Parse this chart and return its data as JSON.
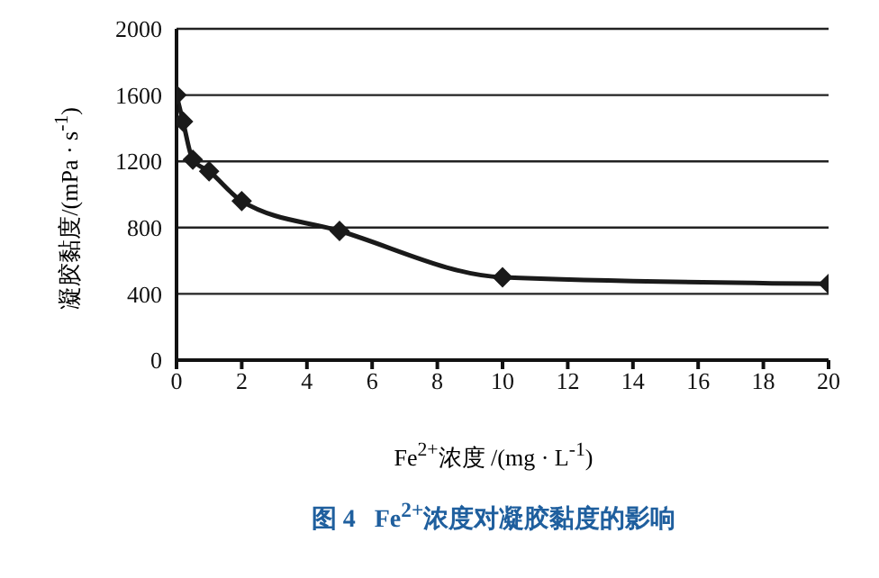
{
  "chart_data": {
    "type": "line",
    "title": "图 4   Fe$^{2+}$浓度对凝胶黏度的影响",
    "xlabel": "Fe$^{2+}$浓度 /(mg · L$^{-1}$)",
    "ylabel": "凝胶黏度/(mPa · s$^{-1}$)",
    "x": [
      0,
      0.2,
      0.5,
      1,
      2,
      5,
      10,
      20
    ],
    "series": [
      {
        "color": "#1a1a1a",
        "values": [
          1600,
          1440,
          1210,
          1140,
          960,
          780,
          500,
          460
        ]
      }
    ],
    "xlim": [
      0,
      20
    ],
    "xticks": [
      0,
      2,
      4,
      6,
      8,
      10,
      12,
      14,
      16,
      18,
      20
    ],
    "ylim": [
      0,
      2000
    ],
    "yticks": [
      0,
      400,
      800,
      1200,
      1600,
      2000
    ],
    "grid": "y",
    "legend": false,
    "marker": "diamond",
    "line_style": "solid"
  }
}
